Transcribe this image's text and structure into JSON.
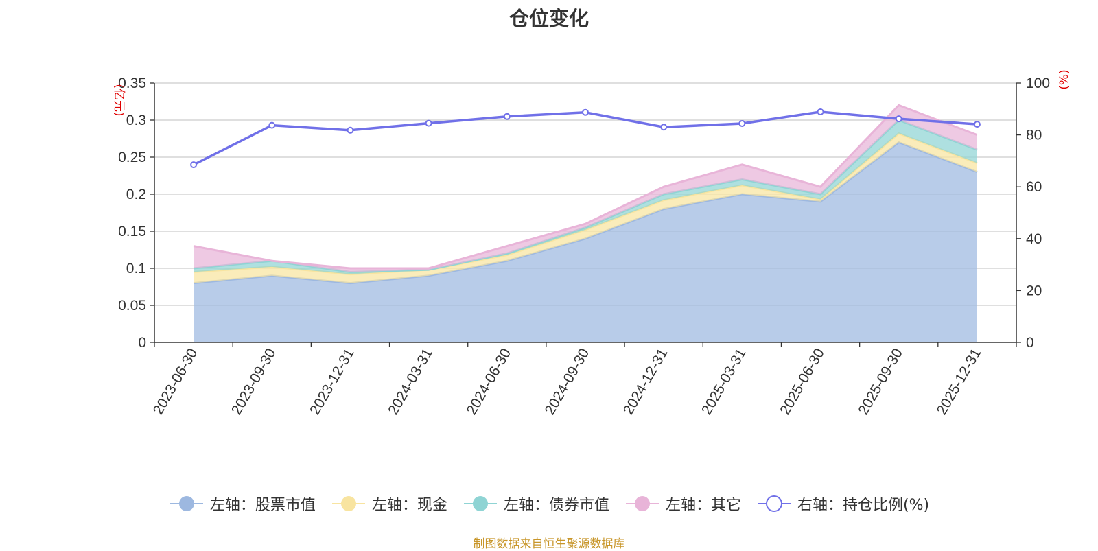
{
  "chart_data": {
    "type": "area",
    "title": "仓位变化",
    "categories": [
      "2023-06-30",
      "2023-09-30",
      "2023-12-31",
      "2024-03-31",
      "2024-06-30",
      "2024-09-30",
      "2024-12-31",
      "2025-03-31",
      "2025-06-30",
      "2025-09-30",
      "2025-12-31"
    ],
    "left_axis": {
      "unit": "(亿元)",
      "ylim": [
        0,
        0.35
      ],
      "ticks": [
        "0",
        "0.05",
        "0.1",
        "0.15",
        "0.2",
        "0.25",
        "0.3",
        "0.35"
      ],
      "stacked": true
    },
    "right_axis": {
      "unit": "(%)",
      "ylim": [
        0,
        100
      ],
      "ticks": [
        "0",
        "20",
        "40",
        "60",
        "80",
        "100"
      ]
    },
    "series": [
      {
        "name": "左轴：股票市值",
        "axis": "left",
        "kind": "area",
        "color": "#9db8e0",
        "values": [
          0.08,
          0.09,
          0.08,
          0.09,
          0.11,
          0.14,
          0.18,
          0.2,
          0.19,
          0.27,
          0.23
        ]
      },
      {
        "name": "左轴：现金",
        "axis": "left",
        "kind": "area",
        "color": "#f8e4a0",
        "values": [
          0.015,
          0.012,
          0.012,
          0.008,
          0.008,
          0.012,
          0.012,
          0.012,
          0.003,
          0.012,
          0.012
        ]
      },
      {
        "name": "左轴：债券市值",
        "axis": "left",
        "kind": "area",
        "color": "#8fd4d4",
        "values": [
          0.005,
          0.008,
          0.003,
          0.0,
          0.002,
          0.003,
          0.008,
          0.008,
          0.007,
          0.018,
          0.018
        ]
      },
      {
        "name": "左轴：其它",
        "axis": "left",
        "kind": "area",
        "color": "#e8b4d8",
        "values": [
          0.03,
          0.0,
          0.005,
          0.002,
          0.01,
          0.005,
          0.01,
          0.02,
          0.01,
          0.02,
          0.02
        ]
      },
      {
        "name": "右轴：持仓比例(%)",
        "axis": "right",
        "kind": "line",
        "color": "#7070e8",
        "values": [
          68.5,
          83.7,
          81.8,
          84.5,
          87.1,
          88.7,
          83.0,
          84.4,
          88.9,
          86.2,
          84.1
        ]
      }
    ]
  },
  "footer": {
    "source": "制图数据来自恒生聚源数据库"
  }
}
